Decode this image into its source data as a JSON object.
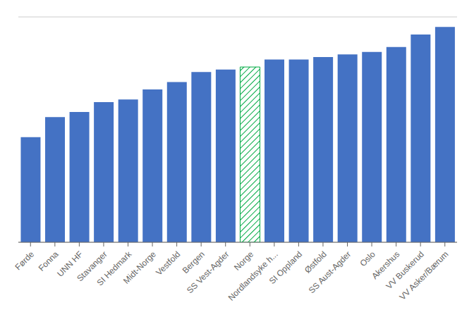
{
  "chart_data": {
    "type": "bar",
    "categories": [
      "Førde",
      "Fonna",
      "UNN HF",
      "Stavanger",
      "SI Hedmark",
      "Midt-Norge",
      "Vestfold",
      "Bergen",
      "SS Vest-Agder",
      "Norge",
      "Nordlandsyke h...",
      "SI Oppland",
      "Østfold",
      "SS Aust-Agder",
      "Oslo",
      "Akershus",
      "VV Buskerud",
      "VV Asker/Bærum"
    ],
    "values": [
      42,
      50,
      52,
      56,
      57,
      61,
      64,
      68,
      69,
      70,
      73,
      73,
      74,
      75,
      76,
      78,
      83,
      86
    ],
    "color": "#4472C4",
    "colors": [
      "#4472C4",
      "#4472C4",
      "#4472C4",
      "#4472C4",
      "#4472C4",
      "#4472C4",
      "#4472C4",
      "#4472C4",
      "#4472C4",
      "#00AA44",
      "#4472C4",
      "#4472C4",
      "#4472C4",
      "#4472C4",
      "#4472C4",
      "#4472C4",
      "#4472C4",
      "#4472C4"
    ],
    "ylim": [
      0,
      90
    ],
    "yticks": [
      0,
      10,
      20,
      30,
      40,
      50,
      60,
      70,
      80,
      90
    ],
    "grid": true,
    "tick_labels": "x"
  }
}
